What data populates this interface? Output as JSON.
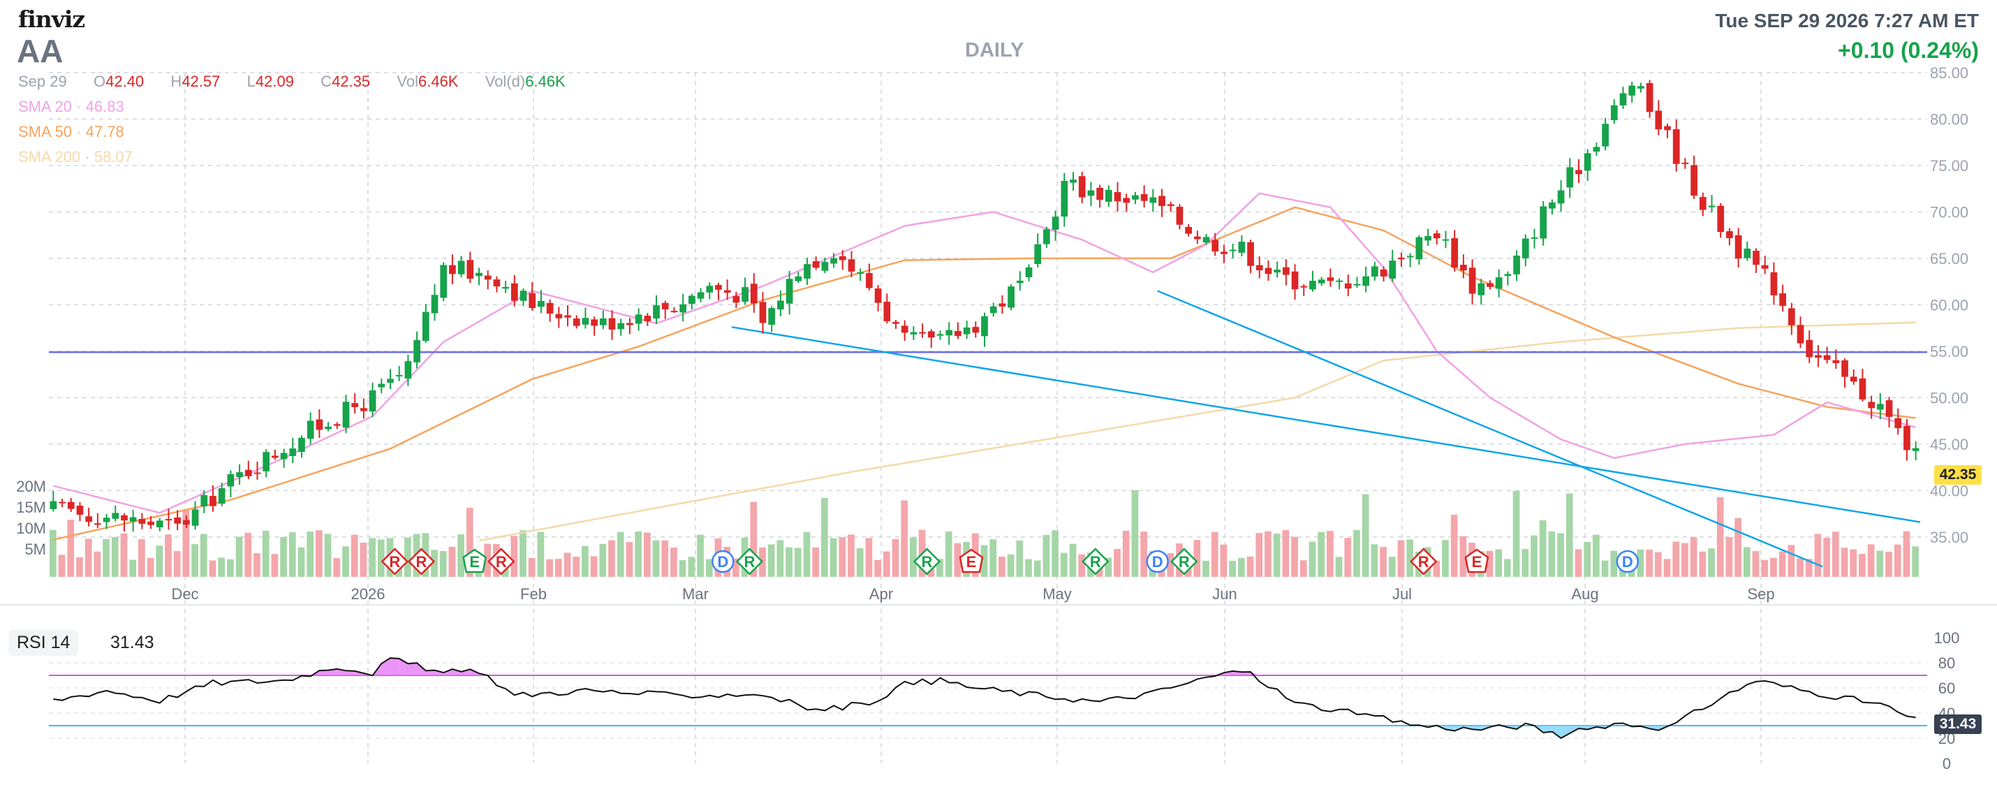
{
  "header": {
    "logo": "finviz",
    "ticker": "AA",
    "timeframe": "DAILY",
    "datetime": "Tue SEP 29 2026 7:27 AM ET",
    "change": "+0.10 (0.24%)"
  },
  "ohlc": {
    "date": "Sep 29",
    "open_label": "O",
    "open": "42.40",
    "high_label": "H",
    "high": "42.57",
    "low_label": "L",
    "low": "42.09",
    "close_label": "C",
    "close": "42.35",
    "vol_label": "Vol",
    "vol": "6.46K",
    "vold_label": "Vol(d)",
    "vold": "6.46K"
  },
  "sma": [
    {
      "label": "SMA 20",
      "value": "46.83",
      "color": "#f0a2e6"
    },
    {
      "label": "SMA 50",
      "value": "47.78",
      "color": "#f7a35c"
    },
    {
      "label": "SMA 200",
      "value": "58.07",
      "color": "#f5d9a8"
    }
  ],
  "colors": {
    "up": "#16a34a",
    "down": "#dc2626",
    "vol_up": "#a5d6a7",
    "vol_down": "#f4a6ab",
    "trend": "#0ea5e9",
    "resistance": "#6d6de8",
    "rsi_line": "#111111",
    "rsi_over": "#c026d3",
    "rsi_under": "#38bdf8"
  },
  "chart_data": {
    "type": "candlestick",
    "x_tick_labels": [
      "Dec",
      "2026",
      "Feb",
      "Mar",
      "Apr",
      "May",
      "Jun",
      "Jul",
      "Aug",
      "Sep"
    ],
    "y_tick_labels": [
      "85.00",
      "80.00",
      "75.00",
      "70.00",
      "65.00",
      "60.00",
      "55.00",
      "50.00",
      "45.00",
      "40.00",
      "35.00"
    ],
    "ylim": [
      30.7,
      85
    ],
    "volume_axis_labels": [
      "20M",
      "15M",
      "10M",
      "5M"
    ],
    "volume_max": 24,
    "last_price": "42.35",
    "resistance_level": 54.9,
    "sessions": 211,
    "trendlines": [
      {
        "from": {
          "index": 77,
          "price": 57.6
        },
        "to": {
          "index": 211,
          "price": 36.6
        }
      },
      {
        "from": {
          "index": 125,
          "price": 61.5
        },
        "to": {
          "index": 200,
          "price": 31.8
        }
      }
    ],
    "sma_keypoints": {
      "SMA 20": [
        [
          0,
          40.5
        ],
        [
          12,
          37.6
        ],
        [
          26,
          43.5
        ],
        [
          36,
          48.0
        ],
        [
          44,
          56.0
        ],
        [
          54,
          61.5
        ],
        [
          68,
          58.0
        ],
        [
          80,
          62.0
        ],
        [
          96,
          68.5
        ],
        [
          106,
          70.0
        ],
        [
          116,
          67.0
        ],
        [
          124,
          63.5
        ],
        [
          130,
          66.5
        ],
        [
          136,
          72.0
        ],
        [
          144,
          70.5
        ],
        [
          150,
          64.0
        ],
        [
          156,
          55.0
        ],
        [
          162,
          50.0
        ],
        [
          170,
          45.5
        ],
        [
          176,
          43.5
        ],
        [
          184,
          45.0
        ],
        [
          194,
          46.0
        ],
        [
          200,
          49.5
        ],
        [
          210,
          46.8
        ]
      ],
      "SMA 50": [
        [
          0,
          34.7
        ],
        [
          20,
          39.0
        ],
        [
          38,
          44.5
        ],
        [
          54,
          52.0
        ],
        [
          66,
          55.5
        ],
        [
          80,
          60.5
        ],
        [
          96,
          64.8
        ],
        [
          110,
          65.0
        ],
        [
          126,
          65.0
        ],
        [
          140,
          70.5
        ],
        [
          150,
          68.0
        ],
        [
          160,
          63.0
        ],
        [
          176,
          56.5
        ],
        [
          190,
          51.5
        ],
        [
          200,
          49.0
        ],
        [
          210,
          47.8
        ]
      ],
      "SMA 200": [
        [
          48,
          34.6
        ],
        [
          90,
          42.0
        ],
        [
          140,
          50.0
        ],
        [
          150,
          54.0
        ],
        [
          170,
          56.0
        ],
        [
          190,
          57.5
        ],
        [
          210,
          58.1
        ]
      ]
    },
    "rsi": {
      "label": "RSI 14",
      "value": "31.43",
      "y_tick_labels": [
        "100",
        "80",
        "60",
        "40",
        "20",
        "0"
      ],
      "ylim": [
        0,
        100
      ],
      "overbought": 70,
      "oversold": 30,
      "keypoints": [
        [
          0,
          50
        ],
        [
          6,
          58
        ],
        [
          12,
          50
        ],
        [
          18,
          64
        ],
        [
          26,
          66
        ],
        [
          32,
          77
        ],
        [
          36,
          72
        ],
        [
          38,
          83
        ],
        [
          44,
          72
        ],
        [
          48,
          74
        ],
        [
          52,
          54
        ],
        [
          60,
          58
        ],
        [
          70,
          54
        ],
        [
          80,
          55
        ],
        [
          86,
          42
        ],
        [
          92,
          48
        ],
        [
          96,
          63
        ],
        [
          100,
          66
        ],
        [
          104,
          60
        ],
        [
          110,
          55
        ],
        [
          118,
          49
        ],
        [
          124,
          56
        ],
        [
          130,
          68
        ],
        [
          134,
          74
        ],
        [
          136,
          67
        ],
        [
          140,
          48
        ],
        [
          148,
          38
        ],
        [
          154,
          30
        ],
        [
          160,
          27
        ],
        [
          166,
          30
        ],
        [
          170,
          22
        ],
        [
          176,
          32
        ],
        [
          182,
          28
        ],
        [
          188,
          52
        ],
        [
          192,
          66
        ],
        [
          198,
          57
        ],
        [
          206,
          47
        ],
        [
          211,
          31
        ]
      ]
    },
    "events": [
      {
        "label": "R",
        "kind": "diamond",
        "color": "#dc2626",
        "index": 39
      },
      {
        "label": "R",
        "kind": "diamond",
        "color": "#dc2626",
        "index": 42
      },
      {
        "label": "E",
        "kind": "pent",
        "color": "#16a34a",
        "index": 48
      },
      {
        "label": "R",
        "kind": "diamond",
        "color": "#dc2626",
        "index": 51
      },
      {
        "label": "D",
        "kind": "circle",
        "color": "#3b82f6",
        "index": 76
      },
      {
        "label": "R",
        "kind": "diamond",
        "color": "#16a34a",
        "index": 79
      },
      {
        "label": "R",
        "kind": "diamond",
        "color": "#16a34a",
        "index": 99
      },
      {
        "label": "E",
        "kind": "pent",
        "color": "#dc2626",
        "index": 104
      },
      {
        "label": "R",
        "kind": "diamond",
        "color": "#16a34a",
        "index": 118
      },
      {
        "label": "D",
        "kind": "circle",
        "color": "#3b82f6",
        "index": 125
      },
      {
        "label": "R",
        "kind": "diamond",
        "color": "#16a34a",
        "index": 128
      },
      {
        "label": "R",
        "kind": "diamond",
        "color": "#dc2626",
        "index": 155
      },
      {
        "label": "E",
        "kind": "pent",
        "color": "#dc2626",
        "index": 161
      },
      {
        "label": "D",
        "kind": "circle",
        "color": "#3b82f6",
        "index": 178
      }
    ]
  }
}
